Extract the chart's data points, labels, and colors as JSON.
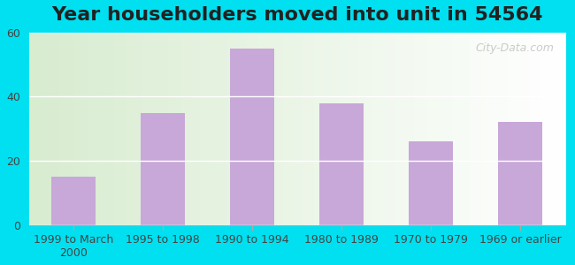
{
  "title": "Year householders moved into unit in 54564",
  "categories": [
    "1999 to March\n2000",
    "1995 to 1998",
    "1990 to 1994",
    "1980 to 1989",
    "1970 to 1979",
    "1969 or earlier"
  ],
  "values": [
    15,
    35,
    55,
    38,
    26,
    32
  ],
  "bar_color": "#c8a8d8",
  "ylim": [
    0,
    60
  ],
  "yticks": [
    0,
    20,
    40,
    60
  ],
  "background_outer": "#00e0f0",
  "background_inner_left": "#d8ecd0",
  "background_inner_right": "#ffffff",
  "title_fontsize": 16,
  "tick_fontsize": 9,
  "watermark": "City-Data.com"
}
